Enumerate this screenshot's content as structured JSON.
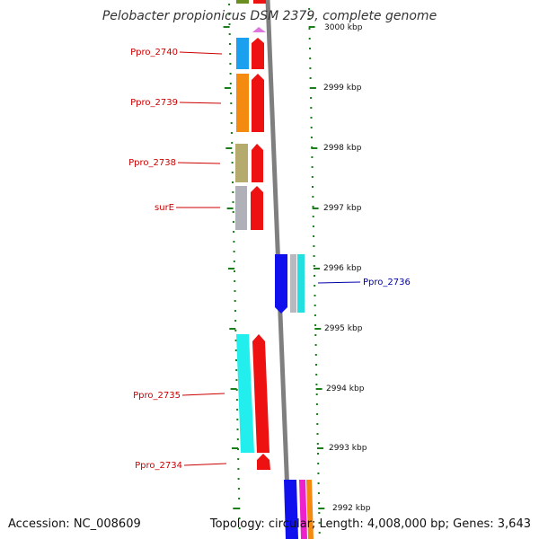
{
  "title": "Pelobacter propionicus DSM 2379, complete genome",
  "footer": {
    "accession": "Accession: NC_008609",
    "topology": "Topology: circular; Length: 4,008,000 bp; Genes: 3,643"
  },
  "colors": {
    "forward_strand": "#ee1111",
    "reverse_label": "#0000aa",
    "forward_label": "#cc0000",
    "backbone": "#7f7f7f",
    "ticks": "#1a7f1a"
  },
  "scale": {
    "unit": "kbp",
    "labels": [
      {
        "kbp": 3000,
        "label": "3000 kbp"
      },
      {
        "kbp": 2999,
        "label": "2999 kbp"
      },
      {
        "kbp": 2998,
        "label": "2998 kbp"
      },
      {
        "kbp": 2997,
        "label": "2997 kbp"
      },
      {
        "kbp": 2996,
        "label": "2996 kbp"
      },
      {
        "kbp": 2995,
        "label": "2995 kbp"
      },
      {
        "kbp": 2994,
        "label": "2994 kbp"
      },
      {
        "kbp": 2993,
        "label": "2993 kbp"
      },
      {
        "kbp": 2992,
        "label": "2992 kbp"
      }
    ]
  },
  "gene_labels": [
    {
      "name": "Ppro_2740",
      "strand": "forward"
    },
    {
      "name": "Ppro_2739",
      "strand": "forward"
    },
    {
      "name": "Ppro_2738",
      "strand": "forward"
    },
    {
      "name": "surE",
      "strand": "forward"
    },
    {
      "name": "Ppro_2736",
      "strand": "reverse"
    },
    {
      "name": "Ppro_2735",
      "strand": "forward"
    },
    {
      "name": "Ppro_2734",
      "strand": "forward"
    }
  ]
}
